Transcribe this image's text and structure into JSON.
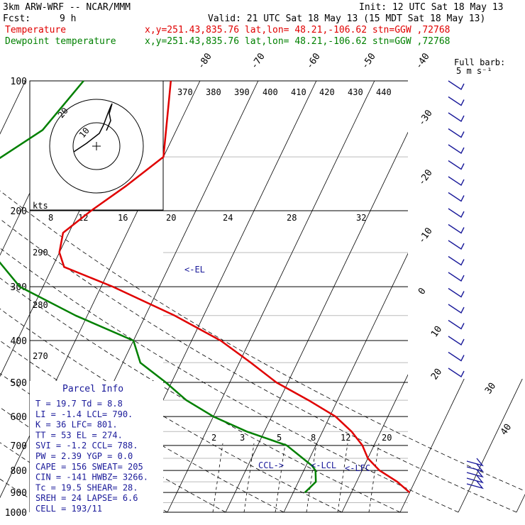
{
  "header": {
    "model": "3km ARW-WRF -- NCAR/MMM",
    "init": "Init: 12 UTC Sat 18 May 13",
    "fcst_label": "Fcst:",
    "fcst_value": "9 h",
    "valid": "Valid: 21 UTC Sat 18 May 13 (15 MDT Sat 18 May 13)",
    "temperature_label": "Temperature",
    "temperature_info": "x,y=251.43,835.76   lat,lon= 48.21,-106.62  stn=GGW ,72768",
    "dewpoint_label": "Dewpoint temperature",
    "dewpoint_info": "x,y=251.43,835.76   lat,lon= 48.21,-106.62  stn=GGW ,72768"
  },
  "barb_legend": {
    "line1": "Full barb:",
    "line2": "5 m s⁻¹"
  },
  "parcel_info": {
    "title": "Parcel Info",
    "rows": [
      "T  =    19.7 Td =   8.8",
      "LI =    -1.4 LCL=  790.",
      "K  =      36 LFC=  801.",
      "TT =      53 EL  =  274.",
      "SVI =   -1.2 CCL=  788.",
      "PW =    2.39 YGP =   0.0",
      "CAPE =   156 SWEAT=  205",
      "CIN =   -141 HWBZ= 3266.",
      "Tc =    19.5 SHEAR=  28.",
      "SREH =    24 LAPSE=  6.6",
      "CELL = 193/11"
    ]
  },
  "markers": {
    "el": "<-EL",
    "ccl": "CCL->",
    "lcl": "<-LCL",
    "lfc": "<-LFC"
  },
  "hodograph": {
    "units_label": "kts",
    "ring_labels": [
      "10",
      "20"
    ]
  },
  "colors": {
    "temperature": "#e00000",
    "dewpoint": "#008000",
    "markers": "#1a1a9a"
  },
  "chart_data": {
    "type": "line",
    "title": "",
    "xlabel": "",
    "ylabel": "",
    "pressure_levels": [
      100,
      200,
      300,
      400,
      500,
      600,
      700,
      800,
      900,
      1000
    ],
    "isotherm_labels": [
      "-80",
      "-70",
      "-60",
      "-50",
      "-40",
      "-30",
      "-20",
      "-10",
      "0",
      "10",
      "20",
      "30",
      "40"
    ],
    "theta_labels": [
      "370",
      "380",
      "390",
      "400",
      "410",
      "420",
      "430",
      "440",
      "290",
      "280",
      "270"
    ],
    "mixing_ratio_labels": [
      "2",
      "3",
      "5",
      "8",
      "12",
      "20"
    ],
    "theta_e_labels": [
      "8",
      "12",
      "16",
      "20",
      "24",
      "28",
      "32"
    ],
    "series": [
      {
        "name": "Temperature",
        "points": [
          [
            100,
            -55
          ],
          [
            150,
            -50
          ],
          [
            175,
            -54
          ],
          [
            200,
            -58
          ],
          [
            225,
            -61
          ],
          [
            250,
            -60
          ],
          [
            270,
            -58
          ],
          [
            300,
            -48
          ],
          [
            350,
            -35
          ],
          [
            400,
            -25
          ],
          [
            450,
            -18
          ],
          [
            500,
            -12
          ],
          [
            550,
            -5
          ],
          [
            600,
            1
          ],
          [
            650,
            5
          ],
          [
            700,
            8
          ],
          [
            750,
            10
          ],
          [
            800,
            13
          ],
          [
            850,
            17
          ],
          [
            900,
            20
          ]
        ]
      },
      {
        "name": "Dewpoint temperature",
        "points": [
          [
            100,
            -70
          ],
          [
            130,
            -73
          ],
          [
            160,
            -80
          ],
          [
            200,
            -86
          ],
          [
            230,
            -78
          ],
          [
            260,
            -70
          ],
          [
            300,
            -64
          ],
          [
            350,
            -52
          ],
          [
            400,
            -40
          ],
          [
            450,
            -37
          ],
          [
            500,
            -31
          ],
          [
            550,
            -26
          ],
          [
            600,
            -20
          ],
          [
            650,
            -13
          ],
          [
            700,
            -5
          ],
          [
            780,
            1
          ],
          [
            800,
            2
          ],
          [
            850,
            3
          ],
          [
            900,
            2
          ]
        ]
      }
    ]
  }
}
